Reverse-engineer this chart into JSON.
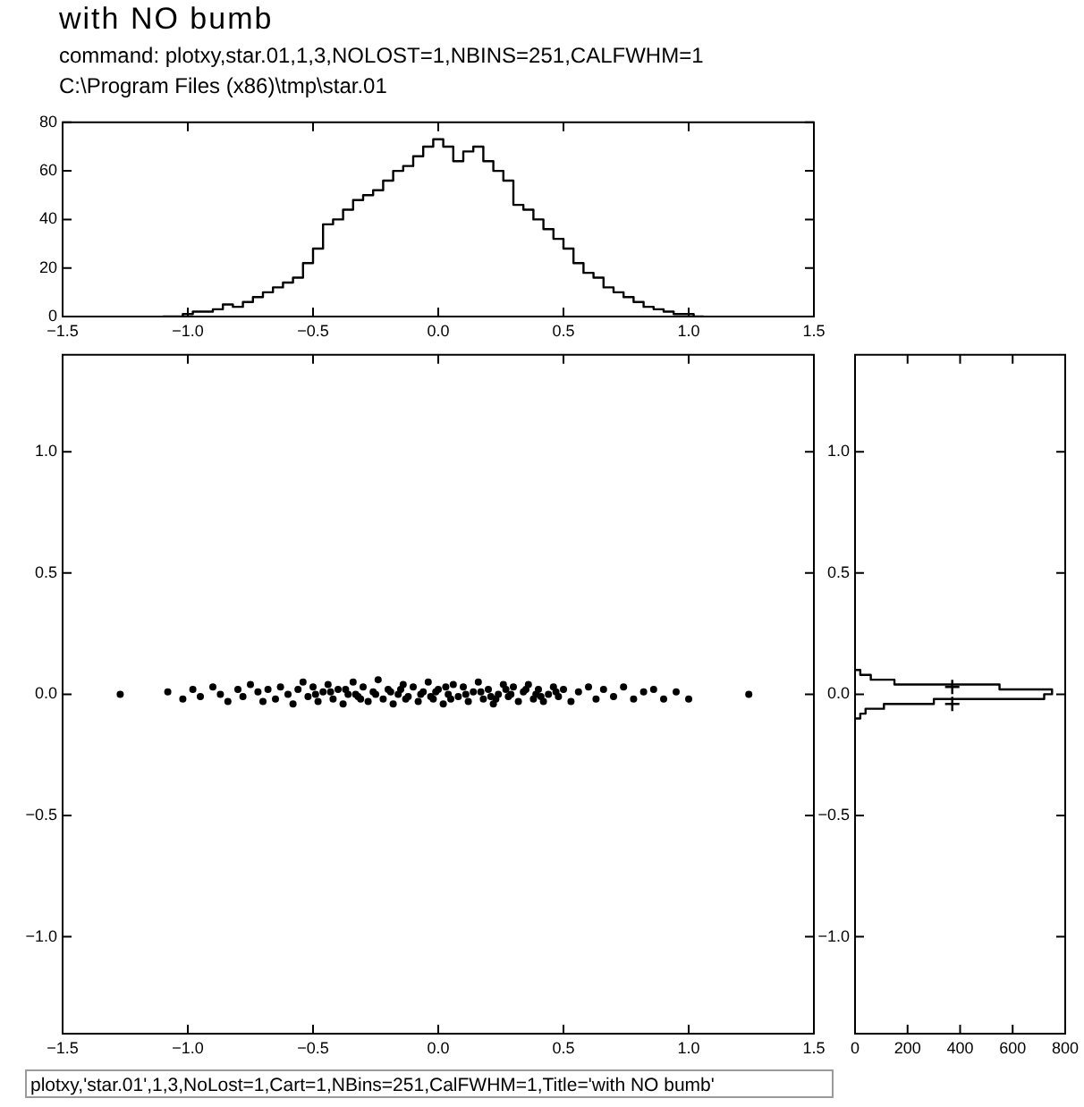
{
  "chart_data": [
    {
      "type": "histogram",
      "title": "with NO bumb",
      "subtitle": "command: plotxy,star.01,1,3,NOLOST=1,NBINS=251,CALFWHM=1",
      "annotations": [
        "C:\\Program Files (x86)\\tmp\\star.01"
      ],
      "color": "#000000",
      "bins": [
        -1.1,
        -1.06,
        -1.02,
        -0.98,
        -0.94,
        -0.9,
        -0.86,
        -0.82,
        -0.78,
        -0.74,
        -0.7,
        -0.66,
        -0.62,
        -0.58,
        -0.54,
        -0.5,
        -0.46,
        -0.42,
        -0.38,
        -0.34,
        -0.3,
        -0.26,
        -0.22,
        -0.18,
        -0.14,
        -0.1,
        -0.06,
        -0.02,
        0.02,
        0.06,
        0.1,
        0.14,
        0.18,
        0.22,
        0.26,
        0.3,
        0.34,
        0.38,
        0.42,
        0.46,
        0.5,
        0.54,
        0.58,
        0.62,
        0.66,
        0.7,
        0.74,
        0.78,
        0.82,
        0.86,
        0.9,
        0.94,
        0.98,
        1.02,
        1.06
      ],
      "values": [
        0,
        0,
        1,
        2,
        2,
        3,
        5,
        4,
        6,
        8,
        10,
        12,
        14,
        16,
        22,
        28,
        38,
        40,
        44,
        48,
        50,
        52,
        56,
        60,
        62,
        66,
        70,
        73,
        70,
        64,
        68,
        70,
        64,
        60,
        56,
        46,
        44,
        40,
        36,
        32,
        28,
        22,
        18,
        16,
        12,
        10,
        8,
        6,
        4,
        3,
        2,
        1,
        1,
        0
      ],
      "xlim": [
        -1.5,
        1.5
      ],
      "xticks": [
        {
          "value": -1.5,
          "label": "−1.5"
        },
        {
          "value": -1.0,
          "label": "−1.0"
        },
        {
          "value": -0.5,
          "label": "−0.5"
        },
        {
          "value": 0,
          "label": "0.0"
        },
        {
          "value": 0.5,
          "label": "0.5"
        },
        {
          "value": 1.0,
          "label": "1.0"
        },
        {
          "value": 1.5,
          "label": "1.5"
        }
      ],
      "ylim": [
        0,
        80
      ],
      "yticks": [
        0,
        20,
        40,
        60,
        80
      ],
      "grid": false,
      "legend": false
    },
    {
      "type": "scatter",
      "color": "#000000",
      "marker": "circle",
      "annotations": [
        "plotxy,'star.01',1,3,NoLost=1,Cart=1,NBins=251,CalFWHM=1,Title='with NO bumb'"
      ],
      "x": [
        -1.27,
        -1.08,
        -1.02,
        -0.98,
        -0.95,
        -0.9,
        -0.87,
        -0.84,
        -0.8,
        -0.78,
        -0.75,
        -0.72,
        -0.7,
        -0.68,
        -0.65,
        -0.63,
        -0.6,
        -0.58,
        -0.56,
        -0.54,
        -0.52,
        -0.5,
        -0.48,
        -0.46,
        -0.44,
        -0.42,
        -0.4,
        -0.38,
        -0.36,
        -0.34,
        -0.32,
        -0.3,
        -0.28,
        -0.26,
        -0.24,
        -0.22,
        -0.2,
        -0.18,
        -0.16,
        -0.14,
        -0.12,
        -0.1,
        -0.08,
        -0.06,
        -0.04,
        -0.02,
        0.0,
        0.02,
        0.04,
        0.06,
        0.08,
        0.1,
        0.12,
        0.14,
        0.16,
        0.18,
        0.2,
        0.22,
        0.24,
        0.26,
        0.28,
        0.3,
        0.32,
        0.34,
        0.36,
        0.38,
        0.4,
        0.42,
        0.44,
        0.46,
        0.48,
        0.5,
        0.53,
        0.56,
        0.6,
        0.63,
        0.66,
        0.7,
        0.74,
        0.78,
        0.82,
        0.86,
        0.9,
        0.95,
        1.0,
        1.24,
        -0.49,
        -0.43,
        -0.37,
        -0.31,
        -0.25,
        -0.19,
        -0.13,
        -0.07,
        -0.01,
        0.05,
        0.11,
        0.17,
        0.23,
        0.29,
        0.35,
        0.41,
        0.47,
        -0.15,
        0.03,
        0.21,
        0.39,
        -0.33,
        -0.03,
        0.27
      ],
      "values": [
        0.0,
        0.01,
        -0.02,
        0.02,
        -0.01,
        0.03,
        0.0,
        -0.03,
        0.02,
        -0.01,
        0.04,
        0.01,
        -0.03,
        0.02,
        -0.02,
        0.03,
        0.0,
        -0.04,
        0.02,
        0.05,
        -0.01,
        0.03,
        -0.03,
        0.01,
        0.04,
        -0.02,
        0.02,
        -0.04,
        0.0,
        0.05,
        -0.01,
        0.03,
        -0.03,
        0.01,
        0.06,
        -0.02,
        0.02,
        -0.04,
        0.0,
        0.04,
        -0.01,
        0.03,
        -0.03,
        0.01,
        0.05,
        -0.02,
        0.02,
        -0.04,
        0.0,
        0.04,
        -0.01,
        0.03,
        -0.03,
        0.01,
        0.05,
        -0.02,
        0.02,
        -0.04,
        0.0,
        0.04,
        -0.01,
        0.03,
        -0.03,
        0.01,
        0.04,
        -0.02,
        0.02,
        -0.03,
        0.0,
        0.03,
        -0.01,
        0.02,
        -0.03,
        0.01,
        0.03,
        -0.02,
        0.02,
        -0.01,
        0.03,
        -0.02,
        0.01,
        0.02,
        -0.02,
        0.01,
        -0.02,
        0.0,
        0.0,
        0.01,
        0.02,
        -0.02,
        0.0,
        0.01,
        -0.02,
        0.0,
        0.01,
        -0.02,
        0.0,
        0.01,
        -0.02,
        0.0,
        0.02,
        -0.01,
        0.01,
        0.02,
        0.03,
        -0.01,
        0.0,
        0.0,
        -0.01,
        0.02
      ],
      "xlim": [
        -1.5,
        1.5
      ],
      "xticks": [
        {
          "value": -1.5,
          "label": "−1.5"
        },
        {
          "value": -1.0,
          "label": "−1.0"
        },
        {
          "value": -0.5,
          "label": "−0.5"
        },
        {
          "value": 0,
          "label": "0.0"
        },
        {
          "value": 0.5,
          "label": "0.5"
        },
        {
          "value": 1.0,
          "label": "1.0"
        },
        {
          "value": 1.5,
          "label": "1.5"
        }
      ],
      "ylim": [
        -1.4,
        1.4
      ],
      "yticks": [
        {
          "value": -1.0,
          "label": "−1.0"
        },
        {
          "value": -0.5,
          "label": "−0.5"
        },
        {
          "value": 0,
          "label": "0.0"
        },
        {
          "value": 0.5,
          "label": "0.5"
        },
        {
          "value": 1.0,
          "label": "1.0"
        }
      ],
      "grid": false,
      "legend": false
    },
    {
      "type": "histogram",
      "orientation": "horizontal",
      "grid": false,
      "legend": false,
      "series": [
        {
          "color": "#000000",
          "bins": [
            -0.1,
            -0.08,
            -0.06,
            -0.04,
            -0.02,
            0.0,
            0.02,
            0.04,
            0.06,
            0.08,
            0.1
          ],
          "values": [
            20,
            40,
            110,
            300,
            720,
            750,
            550,
            150,
            60,
            20
          ]
        },
        {
          "type": "scatter",
          "color": "#000000",
          "marker": "cross",
          "x": [
            0.03,
            -0.04
          ],
          "values": [
            370,
            370
          ]
        }
      ],
      "xlim": [
        0,
        800
      ],
      "xticks": [
        0,
        200,
        400,
        600,
        800
      ],
      "ylim": [
        -1.4,
        1.4
      ],
      "yticks": [
        {
          "value": -1.0,
          "label": "−1.0"
        },
        {
          "value": -0.5,
          "label": "−0.5"
        },
        {
          "value": 0,
          "label": "0.0"
        },
        {
          "value": 0.5,
          "label": "0.5"
        },
        {
          "value": 1.0,
          "label": "1.0"
        }
      ]
    }
  ]
}
